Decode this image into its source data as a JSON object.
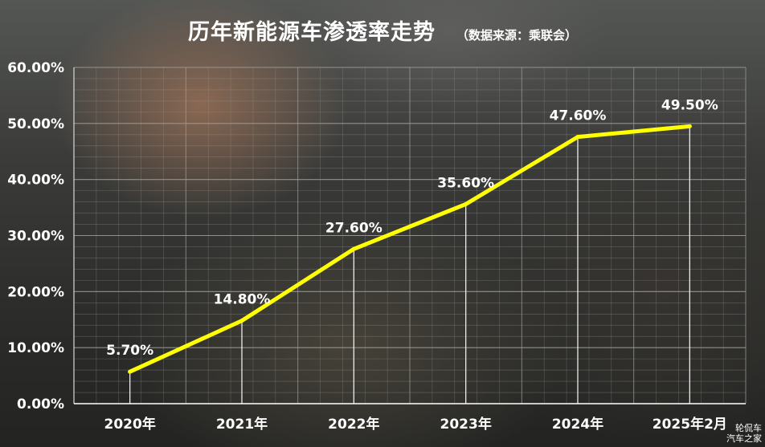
{
  "chart_data": {
    "type": "line",
    "title": "历年新能源车渗透率走势",
    "subtitle": "（数据来源：乘联会）",
    "categories": [
      "2020年",
      "2021年",
      "2022年",
      "2023年",
      "2024年",
      "2025年2月"
    ],
    "series": [
      {
        "values": [
          5.7,
          14.8,
          27.6,
          35.6,
          47.6,
          49.5
        ]
      }
    ],
    "data_labels": [
      "5.70%",
      "14.80%",
      "27.60%",
      "35.60%",
      "47.60%",
      "49.50%"
    ],
    "y_ticks": [
      "0.00%",
      "10.00%",
      "20.00%",
      "30.00%",
      "40.00%",
      "50.00%",
      "60.00%"
    ],
    "ylim": [
      0,
      60
    ],
    "grid": true,
    "line_color": "#FFFF00",
    "gridline_color": "#9A9C98",
    "text_color": "#FFFFFF"
  },
  "watermark": {
    "line1": "轮侃车",
    "line2": "汽车之家"
  }
}
